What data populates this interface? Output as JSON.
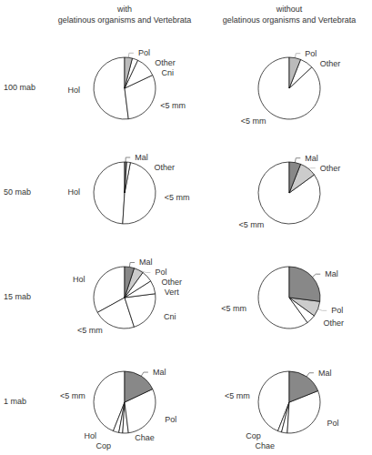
{
  "chart_data": [
    {
      "type": "pie",
      "title": "with\ngelatinous organisms and Vertebrata",
      "annotations": [
        "100 mab"
      ],
      "categories": [
        "Hol",
        "<5 mm",
        "Cni",
        "Other",
        "Pol"
      ],
      "values": [
        52,
        30,
        11,
        3,
        4
      ],
      "colors": [
        "white",
        "white",
        "white",
        "white",
        "#bbbbbb"
      ]
    },
    {
      "type": "pie",
      "annotations": [
        "50 mab"
      ],
      "categories": [
        "Hol",
        "<5 mm",
        "Other",
        "Mal"
      ],
      "values": [
        49,
        48,
        2,
        1
      ],
      "colors": [
        "white",
        "white",
        "white",
        "#888888"
      ]
    },
    {
      "type": "pie",
      "annotations": [
        "15 mab"
      ],
      "categories": [
        "Hol",
        "<5 mm",
        "Cni",
        "Vert",
        "Other",
        "Pol",
        "Mal"
      ],
      "values": [
        33,
        22,
        22,
        7,
        6,
        5,
        5
      ],
      "colors": [
        "white",
        "white",
        "white",
        "white",
        "white",
        "#cccccc",
        "#888888"
      ]
    },
    {
      "type": "pie",
      "annotations": [
        "1 mab"
      ],
      "categories": [
        "<5 mm",
        "Hol",
        "Cop",
        "Chae",
        "Pol",
        "Mal"
      ],
      "values": [
        44,
        3,
        2,
        3,
        30,
        18
      ],
      "colors": [
        "white",
        "white",
        "white",
        "white",
        "white",
        "#888888"
      ]
    },
    {
      "type": "pie",
      "title": "without\ngelatinous organisms and Vertebrata",
      "categories": [
        "<5 mm",
        "Other",
        "Pol"
      ],
      "values": [
        87,
        7,
        6
      ],
      "colors": [
        "white",
        "white",
        "#bbbbbb"
      ]
    },
    {
      "type": "pie",
      "categories": [
        "<5 mm",
        "Other",
        "Mal"
      ],
      "values": [
        85,
        9,
        6
      ],
      "colors": [
        "white",
        "#cccccc",
        "#888888"
      ]
    },
    {
      "type": "pie",
      "categories": [
        "<5 mm",
        "Other",
        "Pol",
        "Mal"
      ],
      "values": [
        60,
        5,
        8,
        27
      ],
      "colors": [
        "white",
        "white",
        "#cccccc",
        "#888888"
      ]
    },
    {
      "type": "pie",
      "categories": [
        "<5 mm",
        "Cop",
        "Chae",
        "Pol",
        "Mal"
      ],
      "values": [
        44,
        2,
        3,
        32,
        19
      ],
      "colors": [
        "white",
        "white",
        "white",
        "white",
        "#888888"
      ]
    }
  ]
}
